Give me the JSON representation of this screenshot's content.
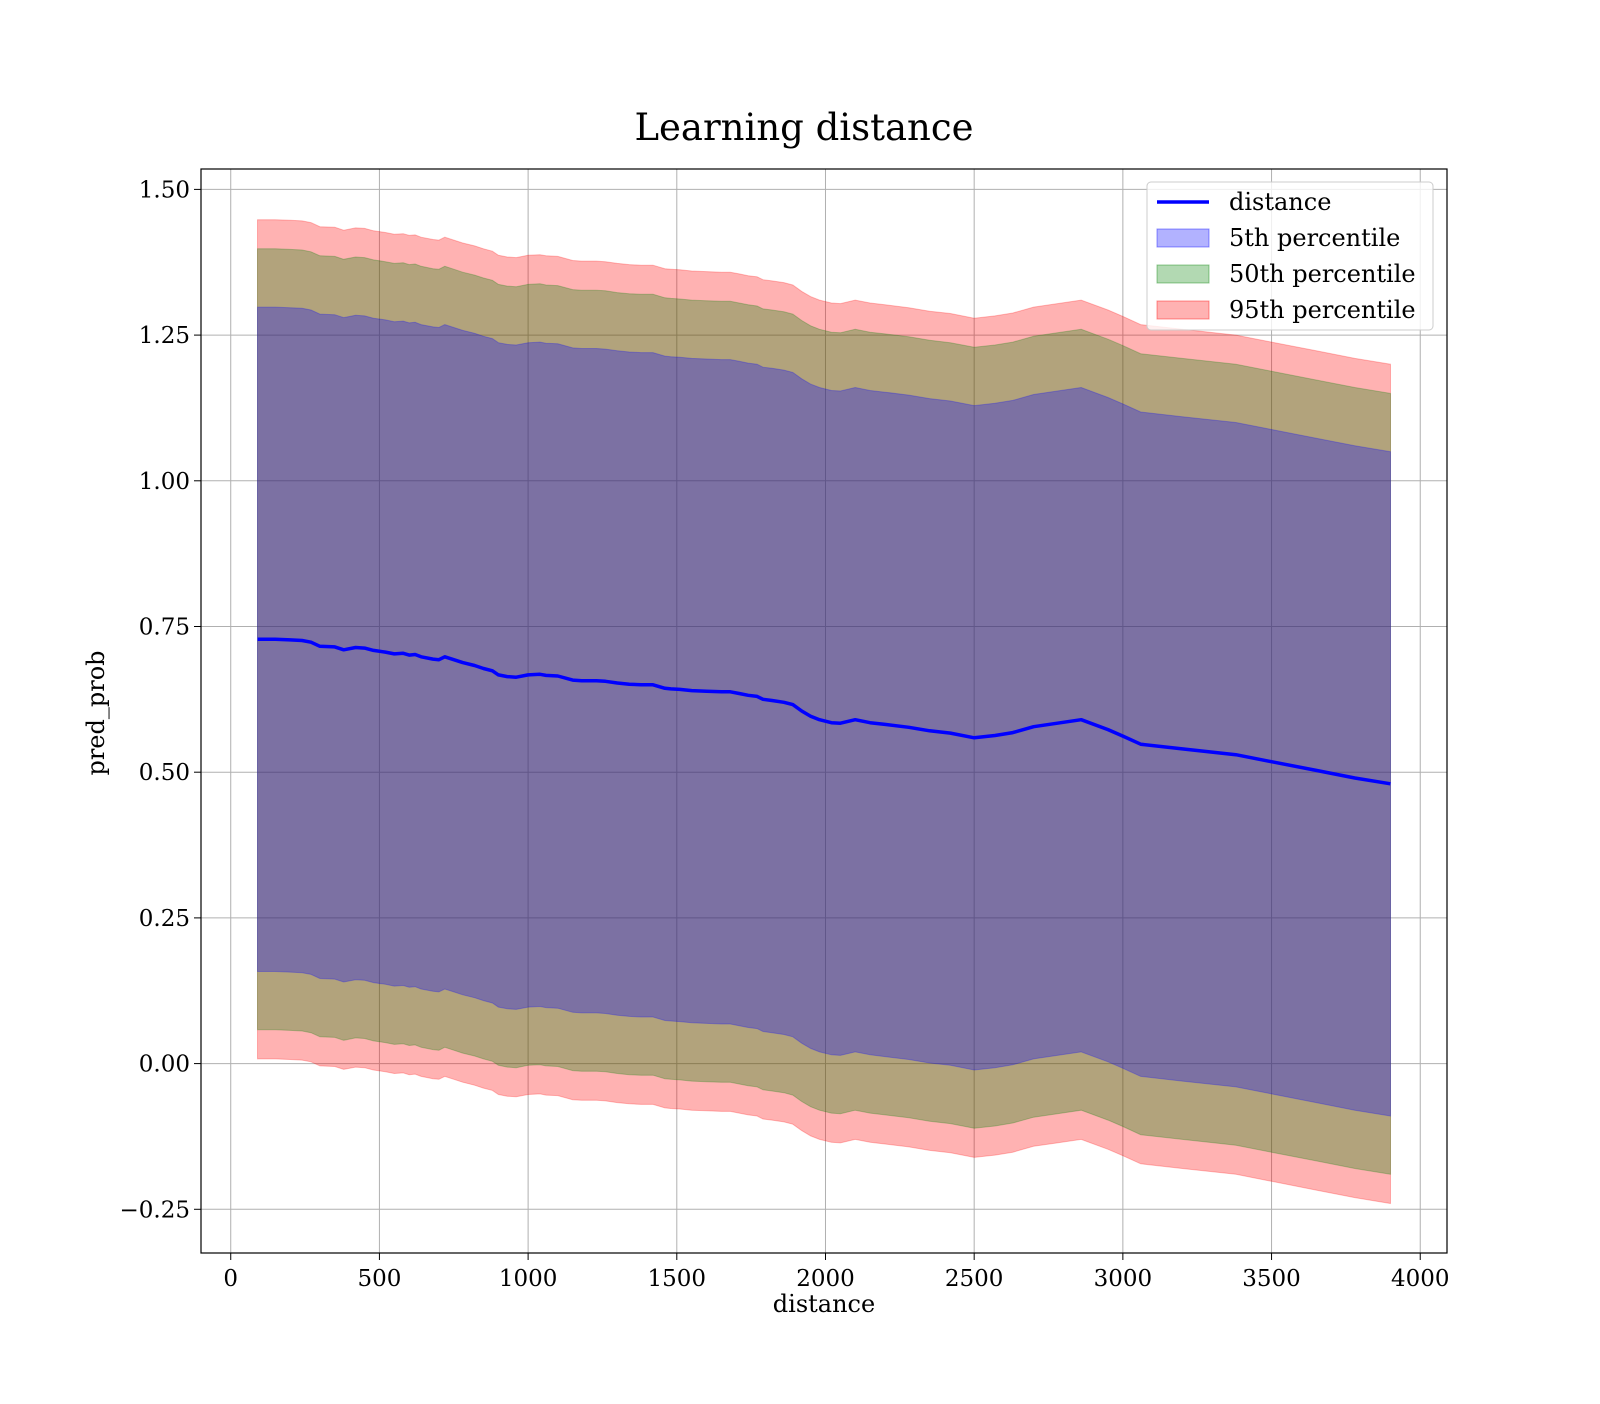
{
  "chart_data": {
    "type": "area",
    "title": "Learning distance",
    "xlabel": "distance",
    "ylabel": "pred_prob",
    "xlim": [
      -100,
      4090
    ],
    "ylim": [
      -0.325,
      1.535
    ],
    "xticks": [
      0,
      500,
      1000,
      1500,
      2000,
      2500,
      3000,
      3500,
      4000
    ],
    "xtick_labels": [
      "0",
      "500",
      "1000",
      "1500",
      "2000",
      "2500",
      "3000",
      "3500",
      "4000"
    ],
    "yticks": [
      -0.25,
      0.0,
      0.25,
      0.5,
      0.75,
      1.0,
      1.25,
      1.5
    ],
    "ytick_labels": [
      "−0.25",
      "0.00",
      "0.25",
      "0.50",
      "0.75",
      "1.00",
      "1.25",
      "1.50"
    ],
    "grid": true,
    "legend_position": "top-right",
    "line": {
      "name": "distance",
      "color": "#0000ff",
      "x": [
        90,
        150,
        200,
        240,
        270,
        300,
        350,
        380,
        420,
        450,
        480,
        520,
        550,
        580,
        600,
        620,
        640,
        680,
        700,
        720,
        750,
        780,
        820,
        850,
        880,
        900,
        930,
        960,
        1000,
        1040,
        1060,
        1100,
        1150,
        1180,
        1230,
        1260,
        1300,
        1340,
        1380,
        1420,
        1460,
        1480,
        1510,
        1550,
        1600,
        1650,
        1680,
        1710,
        1740,
        1770,
        1790,
        1820,
        1860,
        1890,
        1920,
        1950,
        1980,
        2020,
        2050,
        2100,
        2150,
        2200,
        2280,
        2350,
        2420,
        2500,
        2570,
        2630,
        2700,
        2780,
        2860,
        2950,
        3000,
        3060,
        3200,
        3380,
        3500,
        3650,
        3780,
        3900
      ],
      "values": [
        0.728,
        0.728,
        0.727,
        0.726,
        0.723,
        0.716,
        0.715,
        0.71,
        0.714,
        0.713,
        0.709,
        0.706,
        0.703,
        0.704,
        0.701,
        0.702,
        0.698,
        0.694,
        0.693,
        0.698,
        0.693,
        0.688,
        0.683,
        0.678,
        0.674,
        0.667,
        0.664,
        0.663,
        0.667,
        0.668,
        0.666,
        0.665,
        0.658,
        0.657,
        0.657,
        0.656,
        0.653,
        0.651,
        0.65,
        0.65,
        0.644,
        0.643,
        0.642,
        0.64,
        0.639,
        0.638,
        0.638,
        0.635,
        0.632,
        0.63,
        0.625,
        0.623,
        0.62,
        0.616,
        0.605,
        0.596,
        0.59,
        0.585,
        0.584,
        0.59,
        0.585,
        0.582,
        0.577,
        0.571,
        0.567,
        0.559,
        0.563,
        0.568,
        0.578,
        0.584,
        0.59,
        0.573,
        0.562,
        0.548,
        0.54,
        0.53,
        0.518,
        0.503,
        0.49,
        0.48
      ]
    },
    "bands": [
      {
        "name": "5th percentile",
        "color": "#0000ff",
        "opacity": 0.3,
        "offset_upper": 0.57,
        "offset_lower": -0.57
      },
      {
        "name": "50th percentile",
        "color": "#008000",
        "opacity": 0.3,
        "offset_upper": 0.67,
        "offset_lower": -0.67
      },
      {
        "name": "95th percentile",
        "color": "#ff0000",
        "opacity": 0.3,
        "offset_upper": 0.72,
        "offset_lower": -0.72
      }
    ],
    "legend": [
      {
        "label": "distance",
        "kind": "line",
        "color": "#0000ff"
      },
      {
        "label": "5th percentile",
        "kind": "patch",
        "color": "#0000ff",
        "opacity": 0.3
      },
      {
        "label": "50th percentile",
        "kind": "patch",
        "color": "#008000",
        "opacity": 0.3
      },
      {
        "label": "95th percentile",
        "kind": "patch",
        "color": "#ff0000",
        "opacity": 0.3
      }
    ]
  }
}
